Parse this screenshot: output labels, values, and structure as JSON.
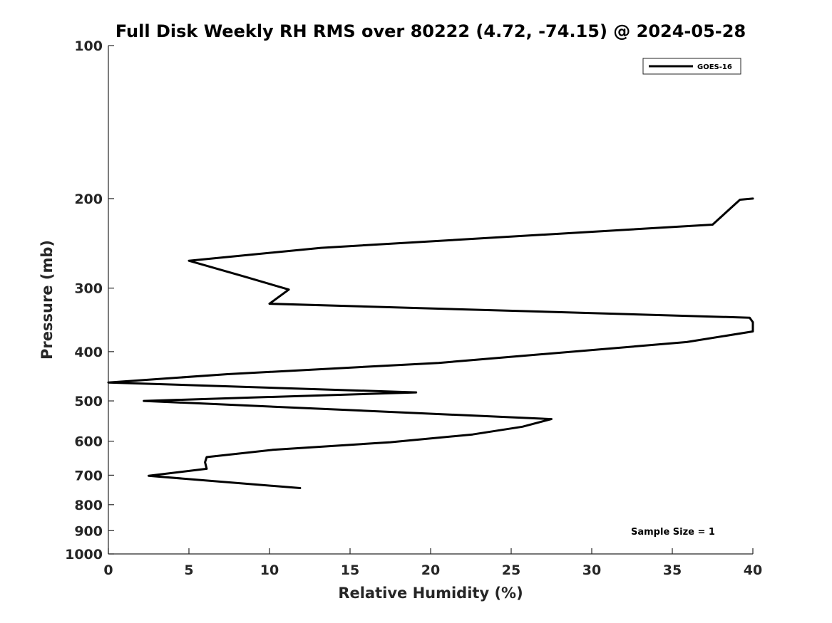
{
  "chart_data": {
    "type": "line",
    "title": "Full Disk Weekly RH RMS over 80222 (4.72, -74.15) @ 2024-05-28",
    "xlabel": "Relative Humidity (%)",
    "ylabel": "Pressure (mb)",
    "xlim": [
      0,
      40
    ],
    "ylim": [
      100,
      1000
    ],
    "y_scale": "log",
    "y_reversed": true,
    "x_ticks": [
      0,
      5,
      10,
      15,
      20,
      25,
      30,
      35,
      40
    ],
    "y_ticks": [
      100,
      200,
      300,
      400,
      500,
      600,
      700,
      800,
      900,
      1000
    ],
    "grid": false,
    "legend_position": "top-right",
    "annotation": "Sample Size = 1",
    "series": [
      {
        "name": "GOES-16",
        "color": "#000000",
        "points": [
          {
            "x": 40.0,
            "y": 200
          },
          {
            "x": 39.2,
            "y": 201
          },
          {
            "x": 37.5,
            "y": 225
          },
          {
            "x": 13.2,
            "y": 250
          },
          {
            "x": 5.0,
            "y": 265
          },
          {
            "x": 8.5,
            "y": 285
          },
          {
            "x": 11.2,
            "y": 302
          },
          {
            "x": 10.0,
            "y": 322
          },
          {
            "x": 39.8,
            "y": 343
          },
          {
            "x": 40.0,
            "y": 350
          },
          {
            "x": 40.0,
            "y": 365
          },
          {
            "x": 35.9,
            "y": 383
          },
          {
            "x": 20.5,
            "y": 421
          },
          {
            "x": 7.4,
            "y": 443
          },
          {
            "x": 0.0,
            "y": 460
          },
          {
            "x": 19.1,
            "y": 481
          },
          {
            "x": 2.2,
            "y": 500
          },
          {
            "x": 27.5,
            "y": 543
          },
          {
            "x": 25.7,
            "y": 562
          },
          {
            "x": 22.6,
            "y": 582
          },
          {
            "x": 17.5,
            "y": 603
          },
          {
            "x": 10.2,
            "y": 624
          },
          {
            "x": 6.1,
            "y": 645
          },
          {
            "x": 6.0,
            "y": 660
          },
          {
            "x": 6.1,
            "y": 680
          },
          {
            "x": 2.5,
            "y": 702
          },
          {
            "x": 11.9,
            "y": 742
          }
        ]
      }
    ]
  }
}
